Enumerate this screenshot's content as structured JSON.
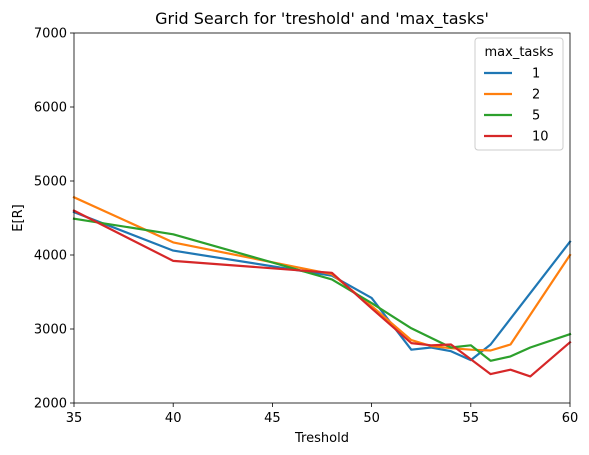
{
  "chart_data": {
    "type": "line",
    "title": "Grid Search for 'treshold' and 'max_tasks'",
    "xlabel": "Treshold",
    "ylabel": "E[R]",
    "xlim": [
      35,
      60
    ],
    "ylim": [
      2000,
      7000
    ],
    "xticks": [
      "35",
      "40",
      "45",
      "50",
      "55",
      "60"
    ],
    "yticks": [
      "2000",
      "3000",
      "4000",
      "5000",
      "6000",
      "7000"
    ],
    "grid": false,
    "legend": {
      "title": "max_tasks",
      "placement": "top-right"
    },
    "series": [
      {
        "name": "1",
        "color": "#1f77b4",
        "x": [
          35,
          40,
          48,
          50,
          52,
          53,
          54,
          55,
          56,
          60
        ],
        "y": [
          4580,
          4060,
          3720,
          3420,
          2720,
          2750,
          2700,
          2580,
          2790,
          4180
        ]
      },
      {
        "name": "2",
        "color": "#ff7f0e",
        "x": [
          35,
          40,
          48,
          50,
          52,
          53,
          54,
          55,
          56,
          57,
          60
        ],
        "y": [
          4780,
          4170,
          3740,
          3310,
          2850,
          2770,
          2740,
          2720,
          2710,
          2790,
          4000
        ]
      },
      {
        "name": "5",
        "color": "#2ca02c",
        "x": [
          35,
          40,
          48,
          50,
          52,
          53,
          54,
          55,
          56,
          57,
          58,
          60
        ],
        "y": [
          4490,
          4280,
          3670,
          3350,
          3010,
          2880,
          2750,
          2780,
          2570,
          2630,
          2750,
          2930
        ]
      },
      {
        "name": "10",
        "color": "#d62728",
        "x": [
          35,
          40,
          48,
          50,
          52,
          53,
          54,
          55,
          56,
          57,
          58,
          60
        ],
        "y": [
          4600,
          3920,
          3760,
          3280,
          2810,
          2780,
          2790,
          2590,
          2390,
          2450,
          2360,
          2820
        ]
      }
    ]
  }
}
